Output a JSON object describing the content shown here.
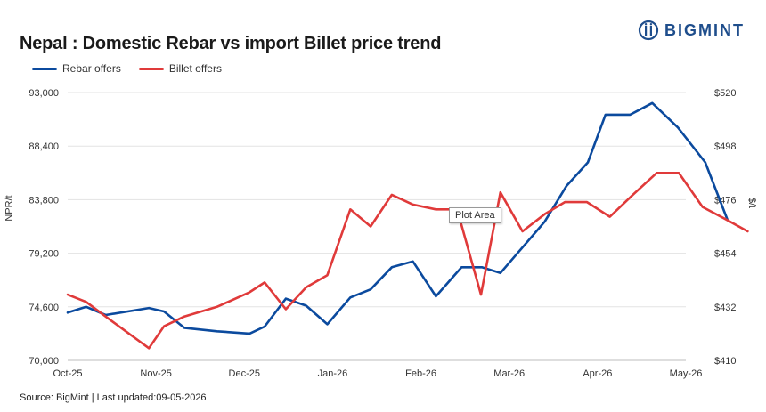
{
  "header": {
    "title": "Nepal : Domestic Rebar vs import Billet price trend"
  },
  "logo": {
    "text": "BIGMINT",
    "color": "#1f4e8c"
  },
  "footer": {
    "source": "Source: BigMint | Last updated:09-05-2026"
  },
  "tooltip": {
    "text": "Plot Area"
  },
  "chart_data": {
    "type": "line",
    "title": "Nepal : Domestic Rebar vs import Billet price trend",
    "ylabel": "NPR/t",
    "y2label": "$/t",
    "ylim": [
      70000,
      93000
    ],
    "y2lim": [
      410,
      520
    ],
    "yticks": [
      "93,000",
      "88,400",
      "83,800",
      "79,200",
      "74,600",
      "70,000"
    ],
    "y2ticks": [
      "$520",
      "$498",
      "$476",
      "$454",
      "$432",
      "$410"
    ],
    "xlim": [
      0,
      7
    ],
    "xticks": [
      {
        "label": "Oct-25",
        "x": 0
      },
      {
        "label": "Nov-25",
        "x": 1
      },
      {
        "label": "Dec-25",
        "x": 2
      },
      {
        "label": "Jan-26",
        "x": 3
      },
      {
        "label": "Feb-26",
        "x": 4
      },
      {
        "label": "Mar-26",
        "x": 5
      },
      {
        "label": "Apr-26",
        "x": 6
      },
      {
        "label": "May-26",
        "x": 7
      }
    ],
    "grid": true,
    "legend_position": "top-left",
    "series": [
      {
        "name": "Rebar offers",
        "axis": "left",
        "color": "#0b4a9e",
        "points": [
          [
            0.0,
            74100
          ],
          [
            0.21,
            74600
          ],
          [
            0.43,
            73900
          ],
          [
            0.92,
            74500
          ],
          [
            1.09,
            74200
          ],
          [
            1.32,
            72800
          ],
          [
            1.69,
            72500
          ],
          [
            2.06,
            72300
          ],
          [
            2.23,
            72900
          ],
          [
            2.47,
            75300
          ],
          [
            2.7,
            74700
          ],
          [
            2.94,
            73100
          ],
          [
            3.2,
            75400
          ],
          [
            3.43,
            76100
          ],
          [
            3.67,
            78000
          ],
          [
            3.91,
            78500
          ],
          [
            4.17,
            75500
          ],
          [
            4.46,
            78000
          ],
          [
            4.69,
            78000
          ],
          [
            4.9,
            77500
          ],
          [
            5.4,
            81900
          ],
          [
            5.65,
            85000
          ],
          [
            5.89,
            87000
          ],
          [
            6.09,
            91100
          ],
          [
            6.37,
            91100
          ],
          [
            6.62,
            92100
          ],
          [
            6.91,
            90000
          ],
          [
            7.22,
            87000
          ],
          [
            7.47,
            82100
          ]
        ]
      },
      {
        "name": "Billet offers",
        "axis": "right",
        "color": "#e03a3a",
        "points": [
          [
            0.0,
            437
          ],
          [
            0.21,
            434
          ],
          [
            0.43,
            428
          ],
          [
            0.92,
            415
          ],
          [
            1.09,
            424
          ],
          [
            1.32,
            428
          ],
          [
            1.69,
            432
          ],
          [
            2.06,
            438
          ],
          [
            2.23,
            442
          ],
          [
            2.47,
            431
          ],
          [
            2.7,
            440
          ],
          [
            2.94,
            445
          ],
          [
            3.2,
            472
          ],
          [
            3.43,
            465
          ],
          [
            3.67,
            478
          ],
          [
            3.91,
            474
          ],
          [
            4.17,
            472
          ],
          [
            4.41,
            472
          ],
          [
            4.68,
            437
          ],
          [
            4.9,
            479
          ],
          [
            5.15,
            463
          ],
          [
            5.4,
            470
          ],
          [
            5.63,
            475
          ],
          [
            5.88,
            475
          ],
          [
            6.14,
            469
          ],
          [
            6.4,
            478
          ],
          [
            6.67,
            487
          ],
          [
            6.92,
            487
          ],
          [
            7.19,
            473
          ],
          [
            7.45,
            468
          ],
          [
            7.7,
            463
          ]
        ]
      }
    ]
  }
}
